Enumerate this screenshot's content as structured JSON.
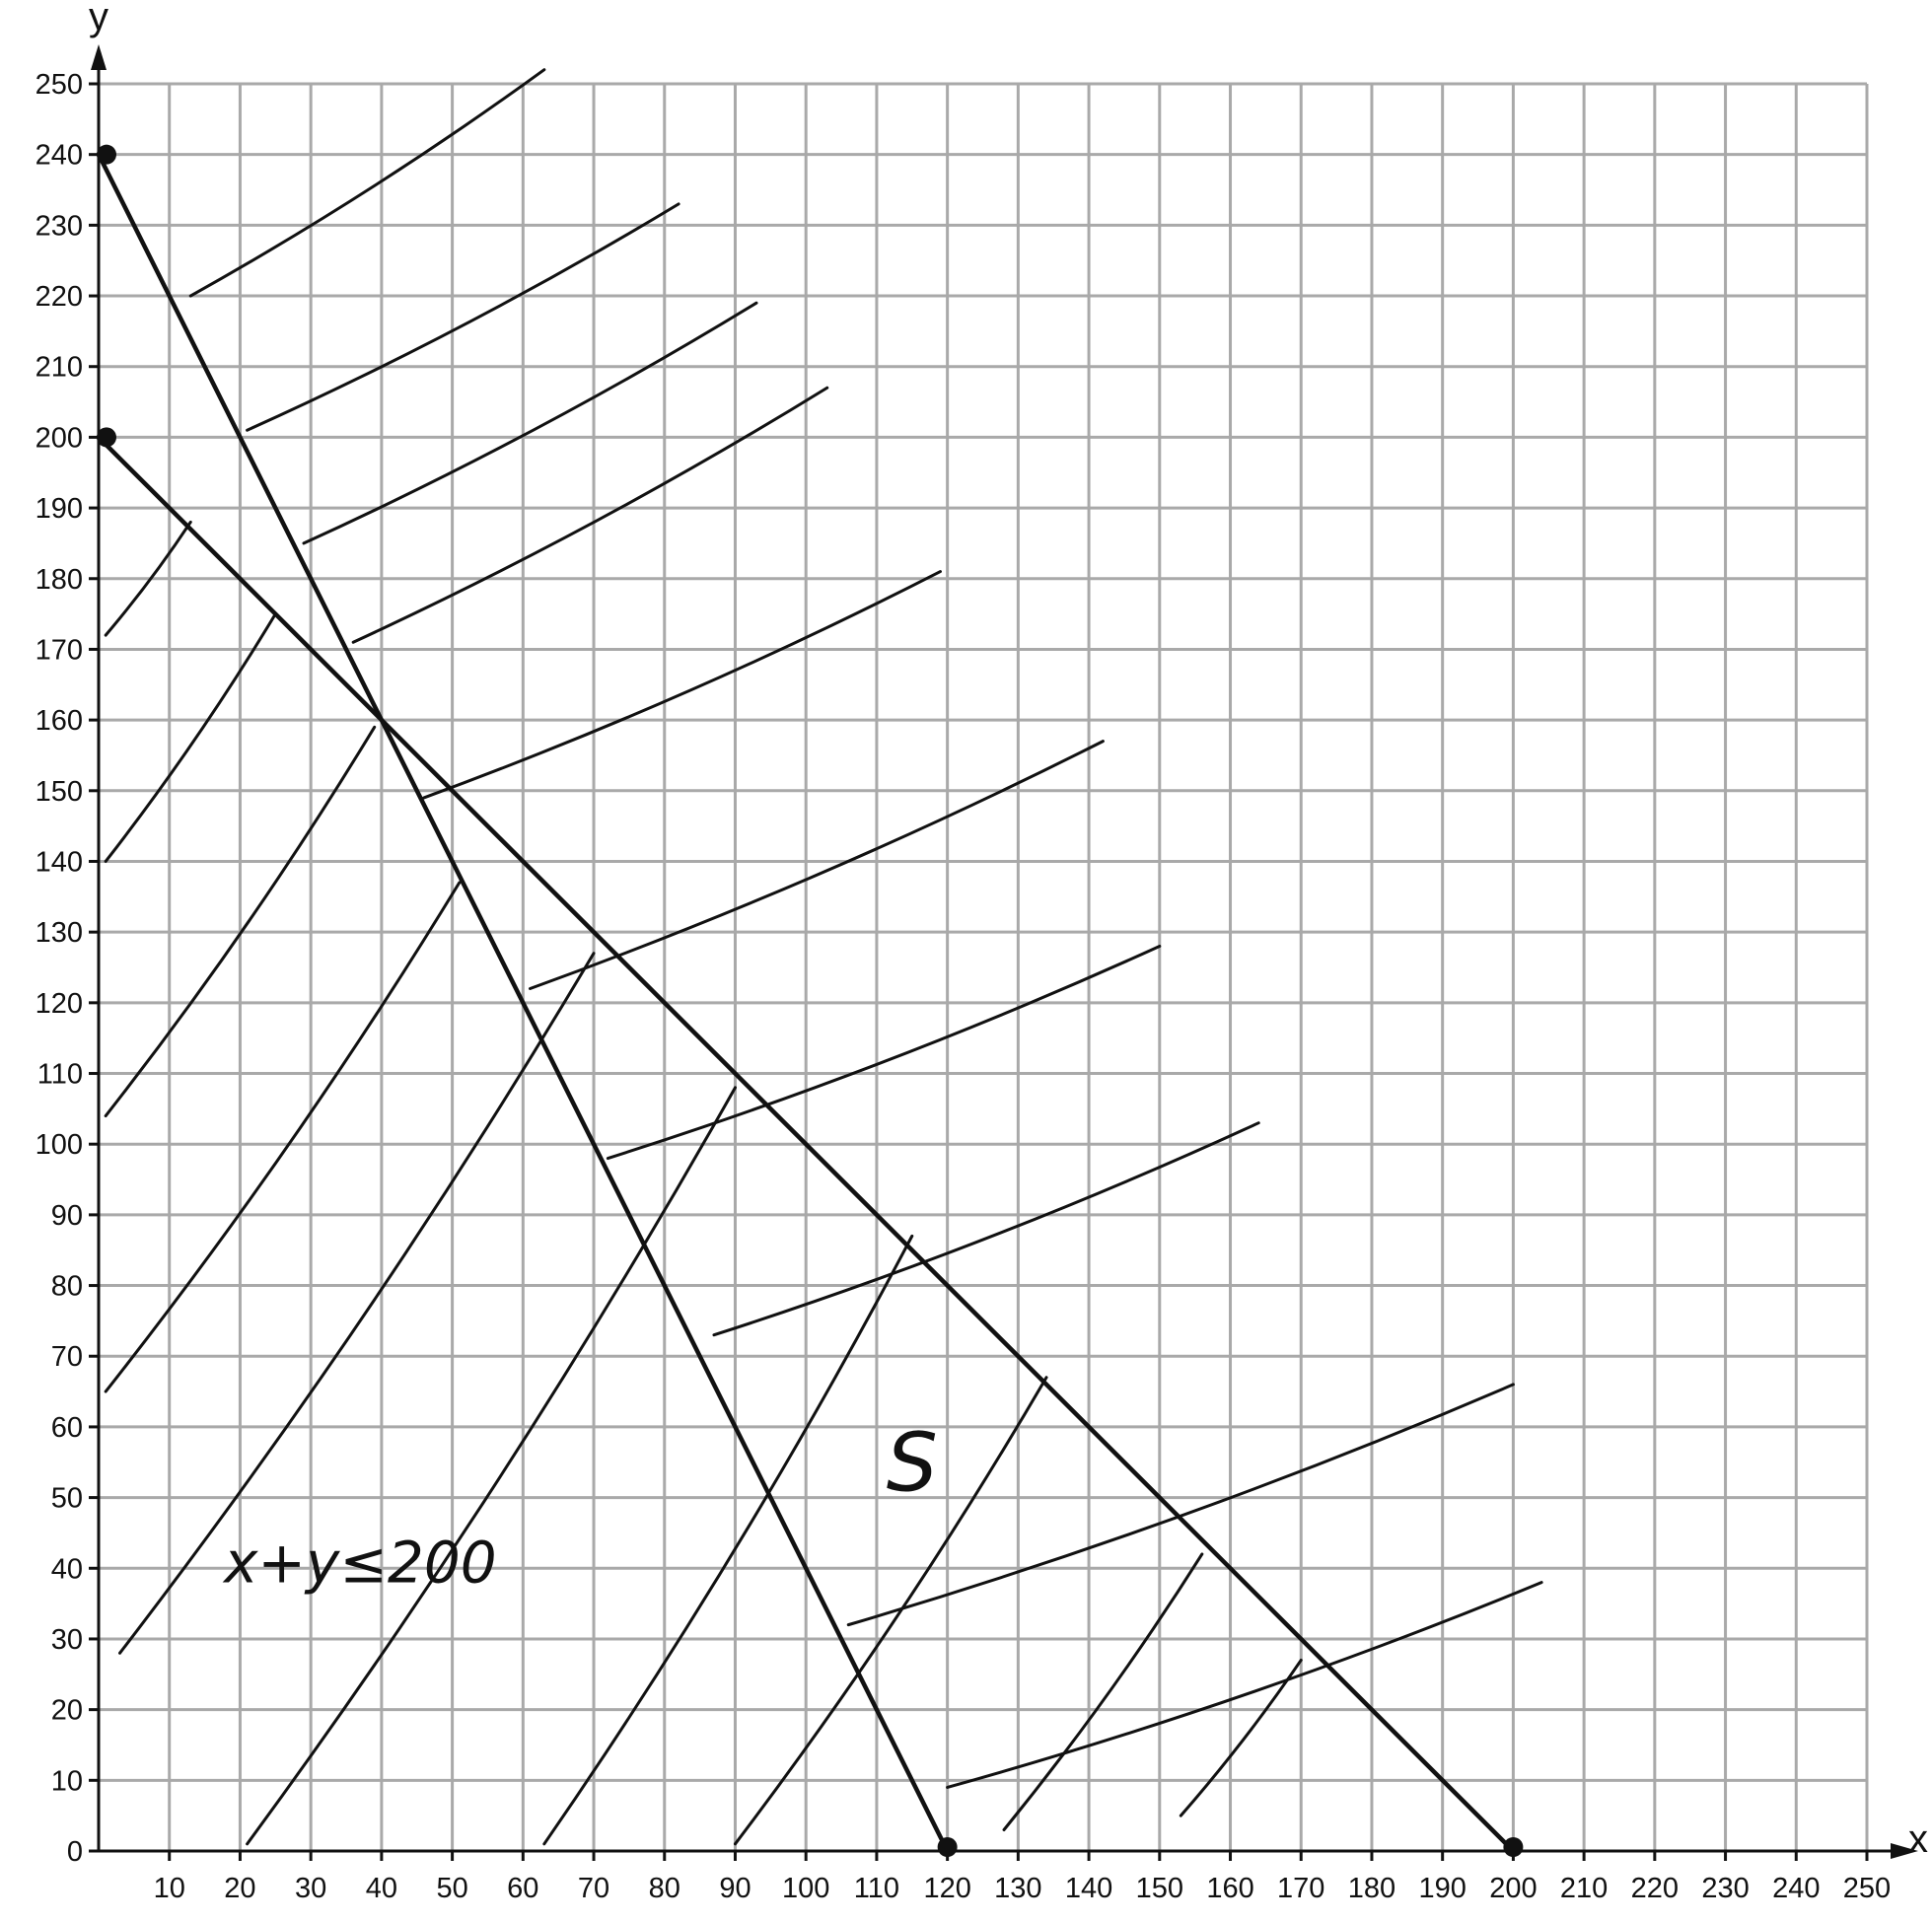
{
  "chart_data": {
    "type": "line",
    "xlabel": "x",
    "ylabel": "y",
    "xlim": [
      0,
      250
    ],
    "ylim": [
      0,
      250
    ],
    "grid": true,
    "x_ticks": [
      10,
      20,
      30,
      40,
      50,
      60,
      70,
      80,
      90,
      100,
      110,
      120,
      130,
      140,
      150,
      160,
      170,
      180,
      190,
      200,
      210,
      220,
      230,
      240,
      250
    ],
    "y_ticks": [
      0,
      10,
      20,
      30,
      40,
      50,
      60,
      70,
      80,
      90,
      100,
      110,
      120,
      130,
      140,
      150,
      160,
      170,
      180,
      190,
      200,
      210,
      220,
      230,
      240,
      250
    ],
    "series": [
      {
        "points": [
          [
            0,
            200
          ],
          [
            200,
            0
          ]
        ]
      },
      {
        "points": [
          [
            0,
            240
          ],
          [
            120,
            0
          ]
        ]
      }
    ],
    "points": [
      [
        0,
        240
      ],
      [
        0,
        200
      ],
      [
        120,
        0
      ],
      [
        200,
        0
      ]
    ],
    "annotations": [
      {
        "text": "x+y≤200",
        "x": 37,
        "y": 38
      },
      {
        "text": "S",
        "x": 115,
        "y": 51
      }
    ],
    "shading": [
      [
        [
          13,
          220
        ],
        [
          63,
          252
        ]
      ],
      [
        [
          21,
          201
        ],
        [
          82,
          233
        ]
      ],
      [
        [
          29,
          185
        ],
        [
          93,
          219
        ]
      ],
      [
        [
          36,
          171
        ],
        [
          103,
          207
        ]
      ],
      [
        [
          46,
          149
        ],
        [
          119,
          181
        ]
      ],
      [
        [
          61,
          122
        ],
        [
          142,
          157
        ]
      ],
      [
        [
          72,
          98
        ],
        [
          150,
          128
        ]
      ],
      [
        [
          87,
          73
        ],
        [
          164,
          103
        ]
      ],
      [
        [
          106,
          32
        ],
        [
          200,
          66
        ]
      ],
      [
        [
          120,
          9
        ],
        [
          204,
          38
        ]
      ],
      [
        [
          1,
          172
        ],
        [
          13,
          188
        ]
      ],
      [
        [
          1,
          140
        ],
        [
          25,
          175
        ]
      ],
      [
        [
          1,
          104
        ],
        [
          39,
          159
        ]
      ],
      [
        [
          1,
          65
        ],
        [
          51,
          137
        ]
      ],
      [
        [
          3,
          28
        ],
        [
          70,
          127
        ]
      ],
      [
        [
          21,
          1
        ],
        [
          90,
          108
        ]
      ],
      [
        [
          63,
          1
        ],
        [
          115,
          87
        ]
      ],
      [
        [
          90,
          1
        ],
        [
          134,
          67
        ]
      ],
      [
        [
          128,
          3
        ],
        [
          156,
          42
        ]
      ],
      [
        [
          153,
          5
        ],
        [
          170,
          27
        ]
      ]
    ]
  }
}
